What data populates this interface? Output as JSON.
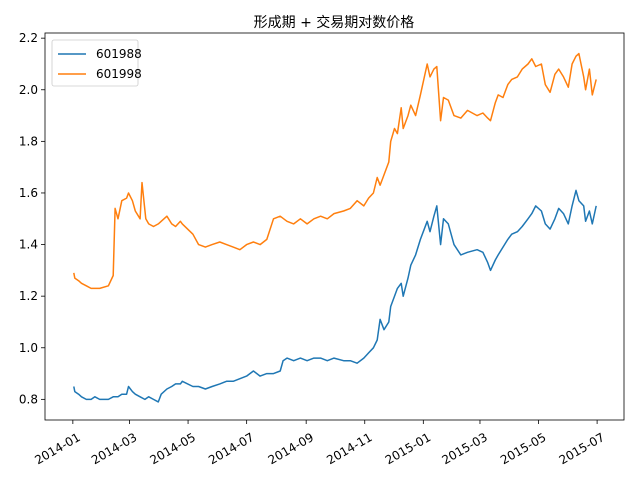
{
  "chart_data": {
    "type": "line",
    "title": "形成期 + 交易期对数价格",
    "xlabel": "",
    "ylabel": "",
    "x_ticks": [
      "2014-01",
      "2014-03",
      "2014-05",
      "2014-07",
      "2014-09",
      "2014-11",
      "2015-01",
      "2015-03",
      "2015-05",
      "2015-07"
    ],
    "y_ticks": [
      "0.8",
      "1.0",
      "1.2",
      "1.4",
      "1.6",
      "1.8",
      "2.0",
      "2.2"
    ],
    "ylim": [
      0.72,
      2.22
    ],
    "xlim": [
      "2013-12-03",
      "2015-07-29"
    ],
    "grid": false,
    "legend_position": "upper-left",
    "series": [
      {
        "name": "601988",
        "color": "#1f77b4",
        "points": [
          [
            "2014-01-02",
            0.85
          ],
          [
            "2014-01-03",
            0.83
          ],
          [
            "2014-01-07",
            0.82
          ],
          [
            "2014-01-10",
            0.81
          ],
          [
            "2014-01-15",
            0.8
          ],
          [
            "2014-01-20",
            0.8
          ],
          [
            "2014-01-24",
            0.81
          ],
          [
            "2014-01-29",
            0.8
          ],
          [
            "2014-02-07",
            0.8
          ],
          [
            "2014-02-12",
            0.81
          ],
          [
            "2014-02-17",
            0.81
          ],
          [
            "2014-02-21",
            0.82
          ],
          [
            "2014-02-26",
            0.82
          ],
          [
            "2014-02-28",
            0.85
          ],
          [
            "2014-03-04",
            0.83
          ],
          [
            "2014-03-07",
            0.82
          ],
          [
            "2014-03-12",
            0.81
          ],
          [
            "2014-03-17",
            0.8
          ],
          [
            "2014-03-21",
            0.81
          ],
          [
            "2014-03-26",
            0.8
          ],
          [
            "2014-03-31",
            0.79
          ],
          [
            "2014-04-03",
            0.82
          ],
          [
            "2014-04-09",
            0.84
          ],
          [
            "2014-04-14",
            0.85
          ],
          [
            "2014-04-18",
            0.86
          ],
          [
            "2014-04-23",
            0.86
          ],
          [
            "2014-04-25",
            0.87
          ],
          [
            "2014-05-06",
            0.85
          ],
          [
            "2014-05-12",
            0.85
          ],
          [
            "2014-05-19",
            0.84
          ],
          [
            "2014-05-26",
            0.85
          ],
          [
            "2014-06-03",
            0.86
          ],
          [
            "2014-06-10",
            0.87
          ],
          [
            "2014-06-17",
            0.87
          ],
          [
            "2014-06-24",
            0.88
          ],
          [
            "2014-07-01",
            0.89
          ],
          [
            "2014-07-08",
            0.91
          ],
          [
            "2014-07-15",
            0.89
          ],
          [
            "2014-07-22",
            0.9
          ],
          [
            "2014-07-29",
            0.9
          ],
          [
            "2014-08-05",
            0.91
          ],
          [
            "2014-08-08",
            0.95
          ],
          [
            "2014-08-12",
            0.96
          ],
          [
            "2014-08-19",
            0.95
          ],
          [
            "2014-08-26",
            0.96
          ],
          [
            "2014-09-02",
            0.95
          ],
          [
            "2014-09-09",
            0.96
          ],
          [
            "2014-09-16",
            0.96
          ],
          [
            "2014-09-23",
            0.95
          ],
          [
            "2014-09-30",
            0.96
          ],
          [
            "2014-10-10",
            0.95
          ],
          [
            "2014-10-17",
            0.95
          ],
          [
            "2014-10-24",
            0.94
          ],
          [
            "2014-10-31",
            0.96
          ],
          [
            "2014-11-05",
            0.98
          ],
          [
            "2014-11-10",
            1.0
          ],
          [
            "2014-11-14",
            1.03
          ],
          [
            "2014-11-17",
            1.11
          ],
          [
            "2014-11-21",
            1.07
          ],
          [
            "2014-11-26",
            1.1
          ],
          [
            "2014-11-28",
            1.16
          ],
          [
            "2014-12-02",
            1.2
          ],
          [
            "2014-12-05",
            1.23
          ],
          [
            "2014-12-09",
            1.25
          ],
          [
            "2014-12-11",
            1.2
          ],
          [
            "2014-12-16",
            1.27
          ],
          [
            "2014-12-19",
            1.32
          ],
          [
            "2014-12-24",
            1.36
          ],
          [
            "2014-12-29",
            1.42
          ],
          [
            "2015-01-05",
            1.49
          ],
          [
            "2015-01-08",
            1.45
          ],
          [
            "2015-01-12",
            1.51
          ],
          [
            "2015-01-15",
            1.55
          ],
          [
            "2015-01-19",
            1.4
          ],
          [
            "2015-01-22",
            1.5
          ],
          [
            "2015-01-27",
            1.48
          ],
          [
            "2015-02-02",
            1.4
          ],
          [
            "2015-02-09",
            1.36
          ],
          [
            "2015-02-16",
            1.37
          ],
          [
            "2015-02-26",
            1.38
          ],
          [
            "2015-03-04",
            1.37
          ],
          [
            "2015-03-09",
            1.33
          ],
          [
            "2015-03-12",
            1.3
          ],
          [
            "2015-03-17",
            1.34
          ],
          [
            "2015-03-20",
            1.36
          ],
          [
            "2015-03-25",
            1.39
          ],
          [
            "2015-03-30",
            1.42
          ],
          [
            "2015-04-03",
            1.44
          ],
          [
            "2015-04-09",
            1.45
          ],
          [
            "2015-04-14",
            1.47
          ],
          [
            "2015-04-20",
            1.5
          ],
          [
            "2015-04-24",
            1.52
          ],
          [
            "2015-04-28",
            1.55
          ],
          [
            "2015-05-04",
            1.53
          ],
          [
            "2015-05-08",
            1.48
          ],
          [
            "2015-05-13",
            1.46
          ],
          [
            "2015-05-18",
            1.5
          ],
          [
            "2015-05-22",
            1.54
          ],
          [
            "2015-05-27",
            1.52
          ],
          [
            "2015-06-01",
            1.48
          ],
          [
            "2015-06-05",
            1.55
          ],
          [
            "2015-06-09",
            1.61
          ],
          [
            "2015-06-12",
            1.57
          ],
          [
            "2015-06-17",
            1.55
          ],
          [
            "2015-06-19",
            1.49
          ],
          [
            "2015-06-23",
            1.53
          ],
          [
            "2015-06-26",
            1.48
          ],
          [
            "2015-06-30",
            1.55
          ]
        ]
      },
      {
        "name": "601998",
        "color": "#ff7f0e",
        "points": [
          [
            "2014-01-02",
            1.29
          ],
          [
            "2014-01-03",
            1.27
          ],
          [
            "2014-01-07",
            1.26
          ],
          [
            "2014-01-10",
            1.25
          ],
          [
            "2014-01-15",
            1.24
          ],
          [
            "2014-01-20",
            1.23
          ],
          [
            "2014-01-24",
            1.23
          ],
          [
            "2014-01-29",
            1.23
          ],
          [
            "2014-02-07",
            1.24
          ],
          [
            "2014-02-12",
            1.28
          ],
          [
            "2014-02-14",
            1.54
          ],
          [
            "2014-02-17",
            1.5
          ],
          [
            "2014-02-21",
            1.57
          ],
          [
            "2014-02-26",
            1.58
          ],
          [
            "2014-02-28",
            1.6
          ],
          [
            "2014-03-04",
            1.57
          ],
          [
            "2014-03-07",
            1.53
          ],
          [
            "2014-03-12",
            1.5
          ],
          [
            "2014-03-14",
            1.64
          ],
          [
            "2014-03-18",
            1.5
          ],
          [
            "2014-03-21",
            1.48
          ],
          [
            "2014-03-26",
            1.47
          ],
          [
            "2014-03-31",
            1.48
          ],
          [
            "2014-04-03",
            1.49
          ],
          [
            "2014-04-09",
            1.51
          ],
          [
            "2014-04-14",
            1.48
          ],
          [
            "2014-04-18",
            1.47
          ],
          [
            "2014-04-23",
            1.49
          ],
          [
            "2014-04-25",
            1.48
          ],
          [
            "2014-05-06",
            1.44
          ],
          [
            "2014-05-12",
            1.4
          ],
          [
            "2014-05-19",
            1.39
          ],
          [
            "2014-05-26",
            1.4
          ],
          [
            "2014-06-03",
            1.41
          ],
          [
            "2014-06-10",
            1.4
          ],
          [
            "2014-06-17",
            1.39
          ],
          [
            "2014-06-24",
            1.38
          ],
          [
            "2014-07-01",
            1.4
          ],
          [
            "2014-07-08",
            1.41
          ],
          [
            "2014-07-15",
            1.4
          ],
          [
            "2014-07-22",
            1.42
          ],
          [
            "2014-07-29",
            1.5
          ],
          [
            "2014-08-05",
            1.51
          ],
          [
            "2014-08-12",
            1.49
          ],
          [
            "2014-08-19",
            1.48
          ],
          [
            "2014-08-26",
            1.5
          ],
          [
            "2014-09-02",
            1.48
          ],
          [
            "2014-09-09",
            1.5
          ],
          [
            "2014-09-16",
            1.51
          ],
          [
            "2014-09-23",
            1.5
          ],
          [
            "2014-09-30",
            1.52
          ],
          [
            "2014-10-10",
            1.53
          ],
          [
            "2014-10-17",
            1.54
          ],
          [
            "2014-10-24",
            1.57
          ],
          [
            "2014-10-31",
            1.55
          ],
          [
            "2014-11-05",
            1.58
          ],
          [
            "2014-11-10",
            1.6
          ],
          [
            "2014-11-14",
            1.66
          ],
          [
            "2014-11-17",
            1.63
          ],
          [
            "2014-11-21",
            1.67
          ],
          [
            "2014-11-26",
            1.72
          ],
          [
            "2014-11-28",
            1.8
          ],
          [
            "2014-12-02",
            1.85
          ],
          [
            "2014-12-05",
            1.83
          ],
          [
            "2014-12-09",
            1.93
          ],
          [
            "2014-12-11",
            1.85
          ],
          [
            "2014-12-16",
            1.9
          ],
          [
            "2014-12-19",
            1.94
          ],
          [
            "2014-12-24",
            1.9
          ],
          [
            "2014-12-29",
            1.98
          ],
          [
            "2015-01-05",
            2.1
          ],
          [
            "2015-01-08",
            2.05
          ],
          [
            "2015-01-12",
            2.08
          ],
          [
            "2015-01-15",
            2.09
          ],
          [
            "2015-01-19",
            1.88
          ],
          [
            "2015-01-22",
            1.97
          ],
          [
            "2015-01-27",
            1.96
          ],
          [
            "2015-02-02",
            1.9
          ],
          [
            "2015-02-09",
            1.89
          ],
          [
            "2015-02-16",
            1.92
          ],
          [
            "2015-02-26",
            1.9
          ],
          [
            "2015-03-04",
            1.91
          ],
          [
            "2015-03-09",
            1.89
          ],
          [
            "2015-03-12",
            1.88
          ],
          [
            "2015-03-17",
            1.95
          ],
          [
            "2015-03-20",
            1.98
          ],
          [
            "2015-03-25",
            1.97
          ],
          [
            "2015-03-30",
            2.02
          ],
          [
            "2015-04-03",
            2.04
          ],
          [
            "2015-04-09",
            2.05
          ],
          [
            "2015-04-14",
            2.08
          ],
          [
            "2015-04-20",
            2.1
          ],
          [
            "2015-04-24",
            2.12
          ],
          [
            "2015-04-28",
            2.09
          ],
          [
            "2015-05-04",
            2.1
          ],
          [
            "2015-05-08",
            2.02
          ],
          [
            "2015-05-13",
            1.99
          ],
          [
            "2015-05-18",
            2.06
          ],
          [
            "2015-05-22",
            2.08
          ],
          [
            "2015-05-27",
            2.05
          ],
          [
            "2015-06-01",
            2.01
          ],
          [
            "2015-06-05",
            2.1
          ],
          [
            "2015-06-09",
            2.13
          ],
          [
            "2015-06-12",
            2.14
          ],
          [
            "2015-06-17",
            2.05
          ],
          [
            "2015-06-19",
            2.0
          ],
          [
            "2015-06-23",
            2.08
          ],
          [
            "2015-06-26",
            1.98
          ],
          [
            "2015-06-30",
            2.04
          ]
        ]
      }
    ]
  }
}
